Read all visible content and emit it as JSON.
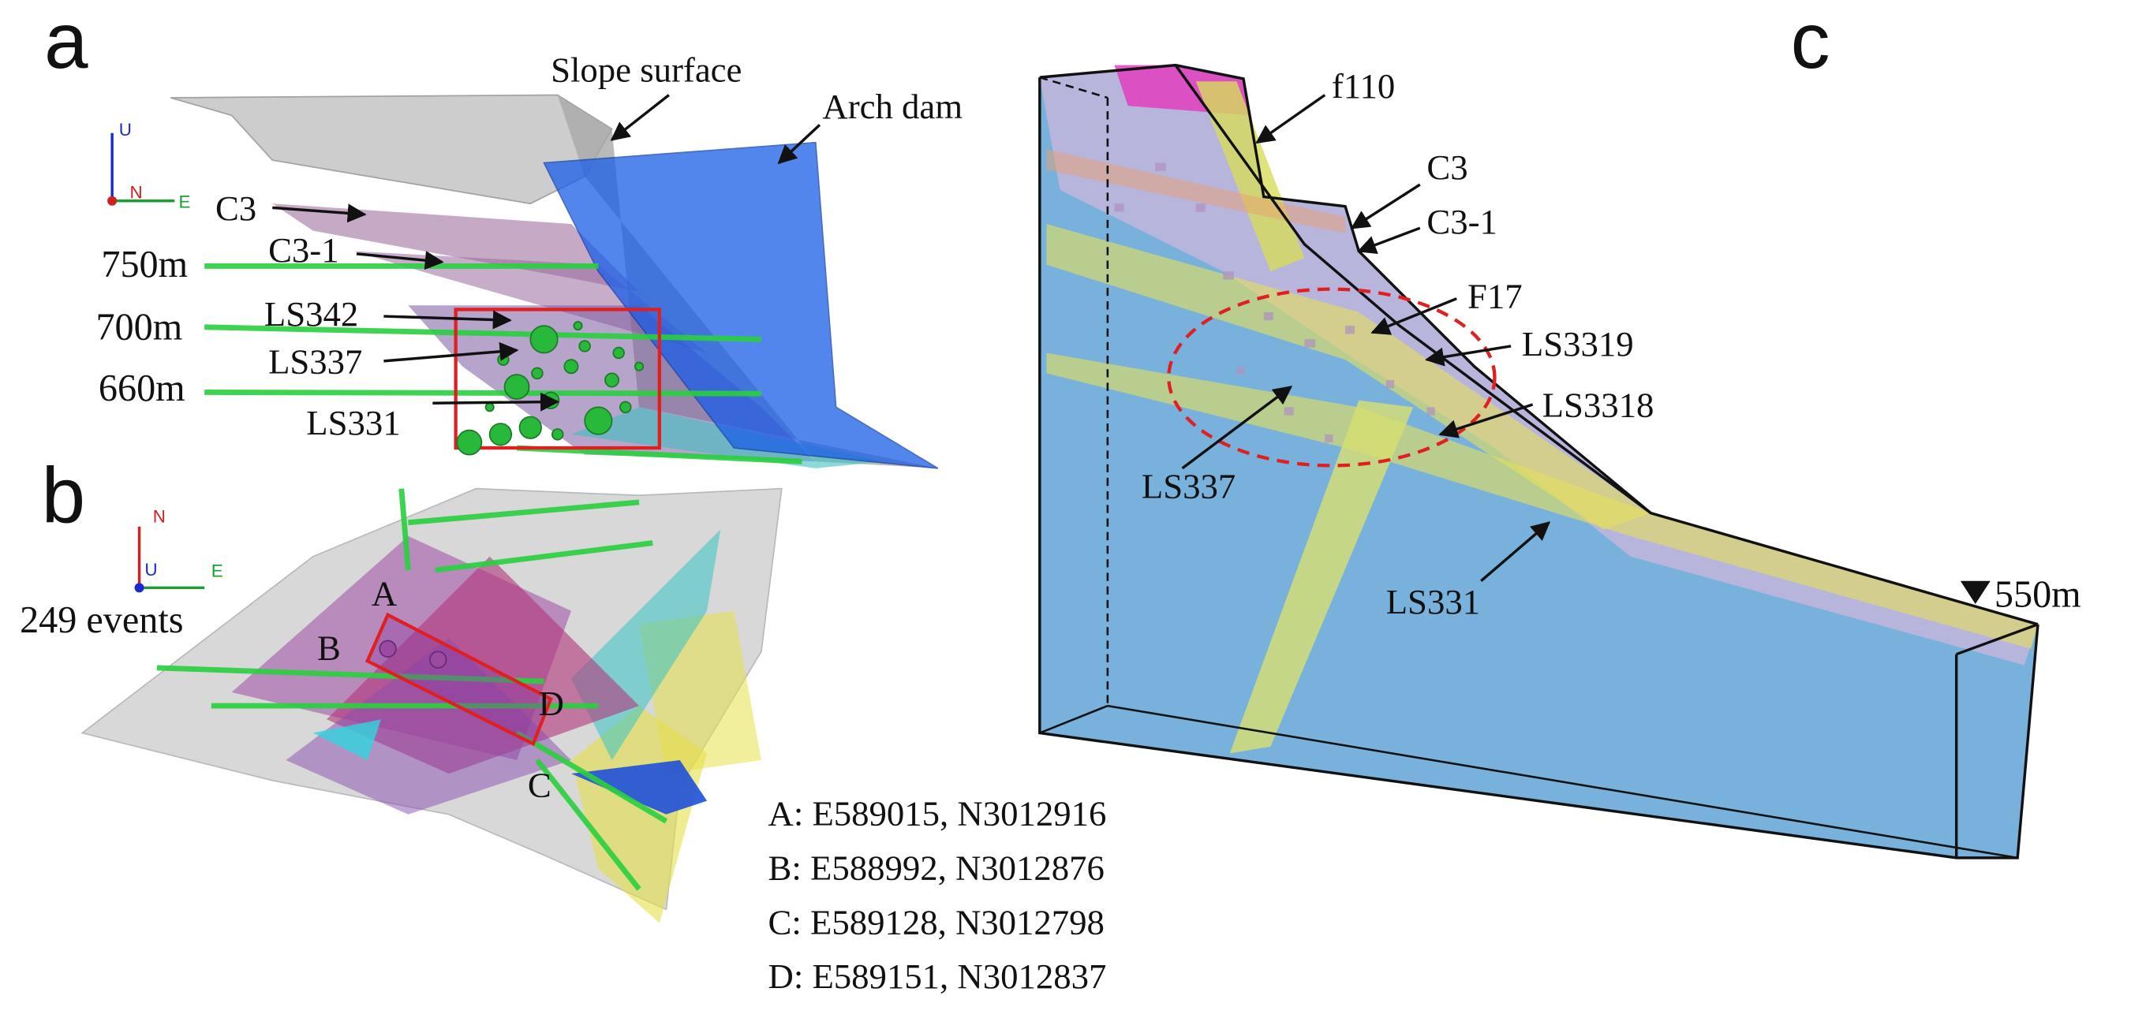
{
  "panels": {
    "a": {
      "label": "a",
      "axis_labels": {
        "up": "U",
        "north": "N",
        "east": "E"
      },
      "annotations": [
        "Slope surface",
        "Arch dam",
        "C3",
        "C3-1",
        "LS342",
        "LS337",
        "LS331"
      ],
      "elevations": [
        "750m",
        "700m",
        "660m"
      ]
    },
    "b": {
      "label": "b",
      "axis_labels": {
        "north": "N",
        "up": "U",
        "east": "E"
      },
      "event_count": "249 events",
      "points": [
        "A",
        "B",
        "C",
        "D"
      ],
      "coordinates": [
        "A: E589015, N3012916",
        "B: E588992, N3012876",
        "C: E589128, N3012798",
        "D: E589151, N3012837"
      ]
    },
    "c": {
      "label": "c",
      "annotations": [
        "f110",
        "C3",
        "C3-1",
        "F17",
        "LS3319",
        "LS3318",
        "LS337",
        "LS331"
      ],
      "water_level": "550m"
    }
  }
}
